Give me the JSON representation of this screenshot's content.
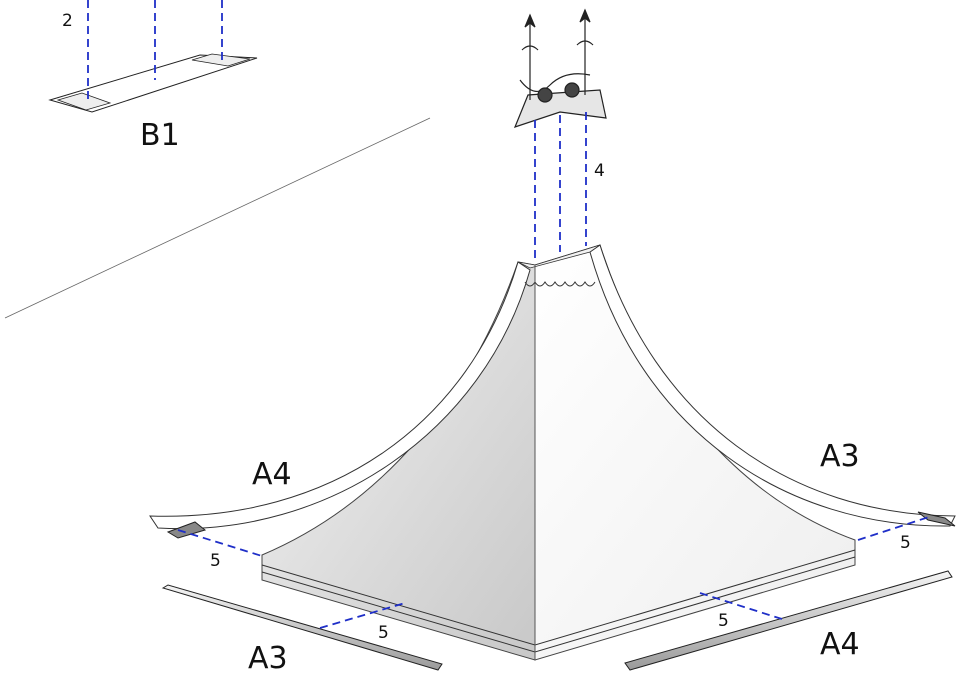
{
  "labels": [
    "2",
    "B1",
    "4",
    "A4",
    "A3",
    "5",
    "5",
    "5",
    "5",
    "A3",
    "A4"
  ]
}
